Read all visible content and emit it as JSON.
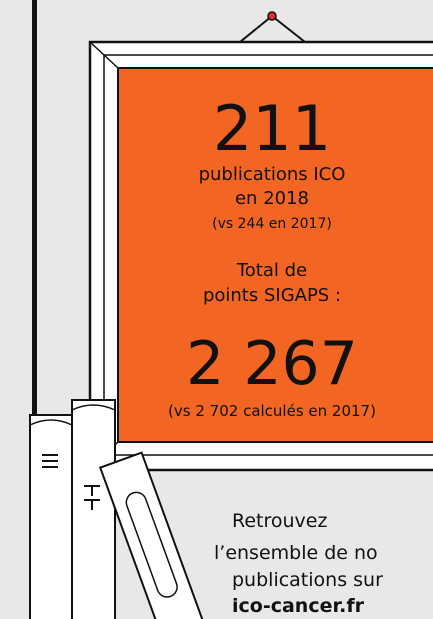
{
  "frame": {
    "count": "211",
    "lines": [
      "publications ICO",
      "en 2018"
    ],
    "comparison": "(vs 244 en 2017)",
    "points_label": [
      "Total de",
      "points SIGAPS :"
    ],
    "points": "2 267",
    "points_comparison": "(vs 2 702 calculés en 2017)"
  },
  "footer": {
    "lines": [
      "Retrouvez",
      "l’ensemble de no",
      "publications sur"
    ],
    "link": "ico-cancer.fr"
  }
}
